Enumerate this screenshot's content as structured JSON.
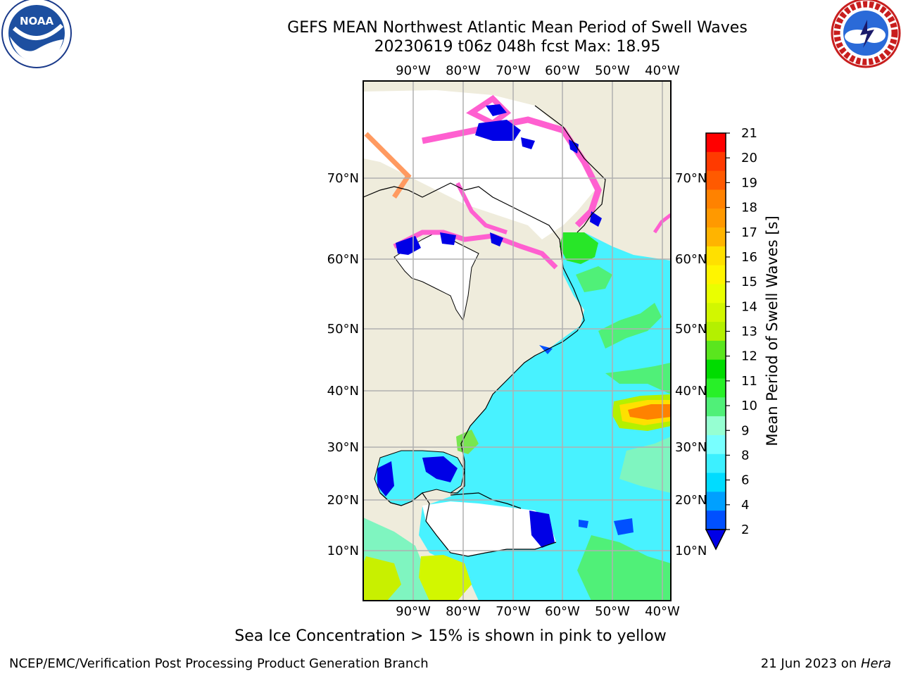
{
  "header": {
    "title_line1": "GEFS MEAN Northwest Atlantic Mean Period of Swell Waves",
    "title_line2": "20230619 t06z 048h fcst   Max: 18.95"
  },
  "logos": {
    "left": {
      "name": "noaa-logo",
      "text": "NOAA"
    },
    "right": {
      "name": "nws-logo",
      "text": "NATIONAL WEATHER SERVICE"
    }
  },
  "map": {
    "lon_labels": [
      "90°W",
      "80°W",
      "70°W",
      "60°W",
      "50°W",
      "40°W"
    ],
    "lat_labels": [
      "70°N",
      "60°N",
      "50°N",
      "40°N",
      "30°N",
      "20°N",
      "10°N"
    ],
    "colors": {
      "land": "#efecdc",
      "white_area": "#ffffff",
      "grid": "#b0b0b0"
    }
  },
  "colorbar": {
    "title": "Mean Period of Swell Waves [s]",
    "ticks": [
      "21",
      "20",
      "19",
      "18",
      "17",
      "16",
      "15",
      "14",
      "13",
      "12",
      "11",
      "10",
      "9",
      "8",
      "6",
      "4",
      "2"
    ],
    "colors_top_to_bottom": [
      "#ff0000",
      "#ff3a00",
      "#ff5a00",
      "#ff8200",
      "#ff9900",
      "#ffb400",
      "#ffe000",
      "#fff500",
      "#eaff00",
      "#d2f700",
      "#b4f000",
      "#5ae61e",
      "#00dc00",
      "#28f028",
      "#50f078",
      "#96ffd2",
      "#78ffff",
      "#3cf0ff",
      "#00dcff",
      "#00a0ff",
      "#0050ff"
    ],
    "under_color": "#0000e6"
  },
  "notes": {
    "ice": "Sea Ice Concentration > 15% is shown in pink to yellow"
  },
  "footer": {
    "left": "NCEP/EMC/Verification Post Processing Product Generation Branch",
    "right_date": "21 Jun 2023 on ",
    "right_host": "Hera"
  }
}
